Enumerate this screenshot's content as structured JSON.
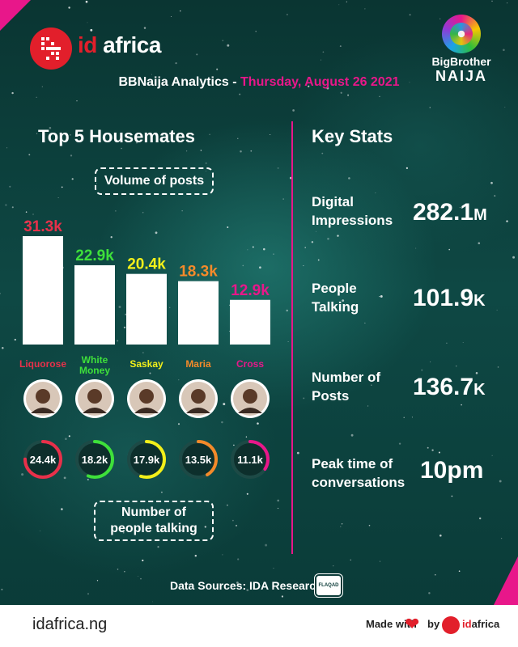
{
  "brand": {
    "logo_id": "id",
    "logo_rest": " africa",
    "show_logo_name": "BigBrother",
    "show_logo_name2": "NAIJA"
  },
  "header": {
    "subtitle_prefix": "BBNaija Analytics - ",
    "subtitle_date": "Thursday, August 26 2021"
  },
  "left": {
    "title": "Top 5 Housemates",
    "posts_box": "Volume of posts",
    "talking_box_line1": "Number of",
    "talking_box_line2": "people talking"
  },
  "chart_data": {
    "type": "bar",
    "categories": [
      "Liquorose",
      "White Money",
      "Saskay",
      "Maria",
      "Cross"
    ],
    "series": [
      {
        "name": "Volume of posts",
        "values": [
          31.3,
          22.9,
          20.4,
          18.3,
          12.9
        ],
        "value_labels": [
          "31.3k",
          "22.9k",
          "20.4k",
          "18.3k",
          "12.9k"
        ]
      },
      {
        "name": "Number of people talking",
        "values": [
          24.4,
          18.2,
          17.9,
          13.5,
          11.1
        ],
        "value_labels": [
          "24.4k",
          "18.2k",
          "17.9k",
          "13.5k",
          "11.1k"
        ]
      }
    ],
    "category_colors": [
      "#e8304a",
      "#3ee03a",
      "#f2ef1a",
      "#f48a2a",
      "#e8178a"
    ],
    "ylim": [
      0,
      31.3
    ],
    "title": "Top 5 Housemates",
    "xlabel": "",
    "ylabel": ""
  },
  "right": {
    "title": "Key Stats",
    "stats": [
      {
        "line1": "Digital",
        "line2": "Impressions",
        "value": "282.1",
        "unit": "M"
      },
      {
        "line1": "People",
        "line2": "Talking",
        "value": "101.9",
        "unit": "K"
      },
      {
        "line1": "Number of",
        "line2": "Posts",
        "value": "136.7",
        "unit": "K"
      },
      {
        "line1": "Peak time of",
        "line2": "conversations",
        "value": "10pm",
        "unit": ""
      }
    ]
  },
  "sources": {
    "text": "Data Sources: IDA Research &",
    "partner": "FLAQAD"
  },
  "footer": {
    "url": "idafrica.ng",
    "made_with": "Made with",
    "by": "by",
    "logo_id": "id",
    "logo_rest": "africa"
  },
  "colors": {
    "accent_pink": "#e8178a",
    "ida_red": "#e21f2b",
    "background": "#0b3b38"
  }
}
